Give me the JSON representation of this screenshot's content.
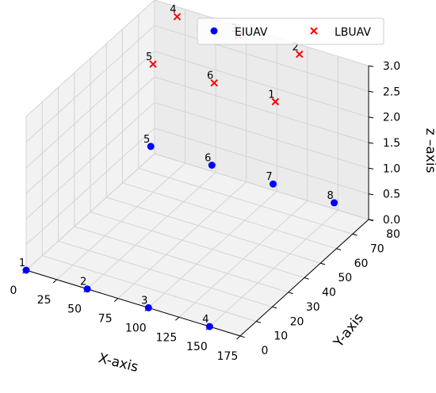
{
  "chart_data": {
    "type": "scatter",
    "projection": "3d",
    "xlabel": "X-axis",
    "ylabel": "Y-axis",
    "zlabel": "z –axis",
    "xlim": [
      0,
      175
    ],
    "ylim": [
      0,
      80
    ],
    "zlim": [
      0,
      3
    ],
    "xticks": [
      "0",
      "25",
      "50",
      "75",
      "100",
      "125",
      "150",
      "175"
    ],
    "yticks": [
      "0",
      "10",
      "20",
      "30",
      "40",
      "50",
      "60",
      "70",
      "80"
    ],
    "zticks": [
      "0.0",
      "0.5",
      "1.0",
      "1.5",
      "2.0",
      "2.5",
      "3.0"
    ],
    "grid": true,
    "legend_position": "top-right",
    "series": [
      {
        "name": "EIUAV",
        "marker": "circle",
        "color": "#0000ff",
        "points": [
          {
            "label": "1",
            "x": 0,
            "y": 0,
            "z": 0
          },
          {
            "label": "2",
            "x": 50,
            "y": 0,
            "z": 0
          },
          {
            "label": "3",
            "x": 100,
            "y": 0,
            "z": 0
          },
          {
            "label": "4",
            "x": 150,
            "y": 0,
            "z": 0
          },
          {
            "label": "5",
            "x": 10,
            "y": 70,
            "z": 0.5
          },
          {
            "label": "6",
            "x": 60,
            "y": 70,
            "z": 0.5
          },
          {
            "label": "7",
            "x": 110,
            "y": 70,
            "z": 0.5
          },
          {
            "label": "8",
            "x": 160,
            "y": 70,
            "z": 0.5
          }
        ]
      },
      {
        "name": "LBUAV",
        "marker": "x",
        "color": "#ff0000",
        "points": [
          {
            "label": "1",
            "x": 125,
            "y": 60,
            "z": 2.5
          },
          {
            "label": "2",
            "x": 125,
            "y": 75,
            "z": 3.0
          },
          {
            "label": "3",
            "x": 75,
            "y": 75,
            "z": 3.0
          },
          {
            "label": "4",
            "x": 25,
            "y": 75,
            "z": 3.0
          },
          {
            "label": "5",
            "x": 25,
            "y": 60,
            "z": 2.5
          },
          {
            "label": "6",
            "x": 75,
            "y": 60,
            "z": 2.5
          }
        ]
      }
    ]
  }
}
